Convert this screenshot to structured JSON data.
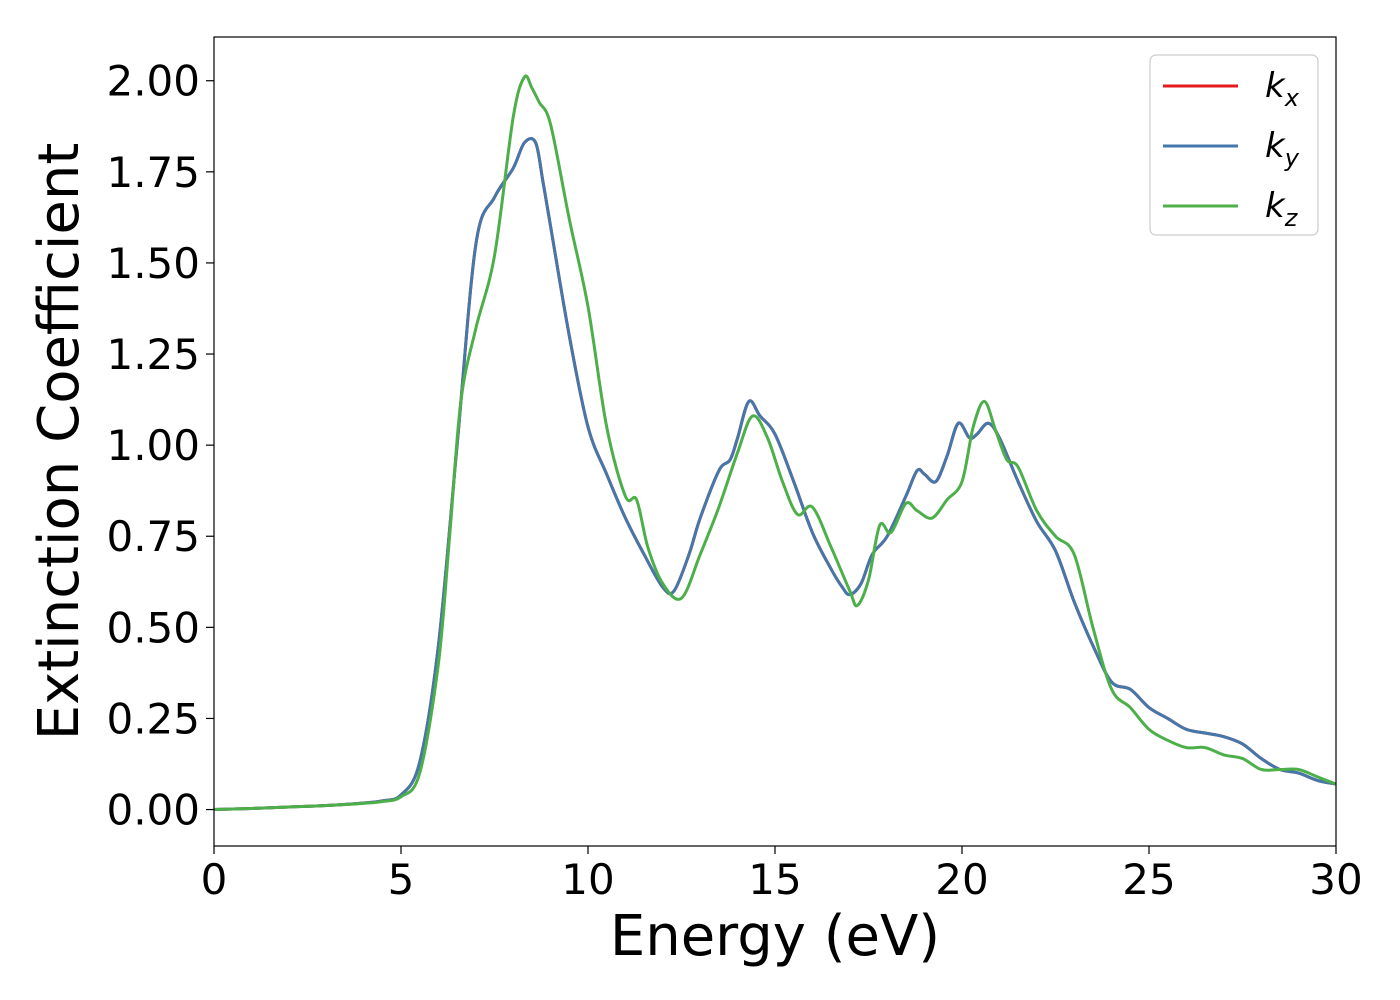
{
  "chart_data": {
    "type": "line",
    "title": "",
    "xlabel": "Energy (eV)",
    "ylabel": "Extinction Coefficient",
    "xlim": [
      0,
      30
    ],
    "ylim": [
      -0.1,
      2.12
    ],
    "xticks": [
      0,
      5,
      10,
      15,
      20,
      25,
      30
    ],
    "xtick_labels": [
      "0",
      "5",
      "10",
      "15",
      "20",
      "25",
      "30"
    ],
    "yticks": [
      0.0,
      0.25,
      0.5,
      0.75,
      1.0,
      1.25,
      1.5,
      1.75,
      2.0
    ],
    "ytick_labels": [
      "0.00",
      "0.25",
      "0.50",
      "0.75",
      "1.00",
      "1.25",
      "1.50",
      "1.75",
      "2.00"
    ],
    "grid": false,
    "legend_position": "top-right",
    "series": [
      {
        "name": "k",
        "subscript": "x",
        "color": "#e41a1c",
        "x": [
          0,
          1,
          2,
          3,
          4,
          4.5,
          5,
          5.5,
          6,
          6.5,
          7,
          7.5,
          8,
          8.3,
          8.6,
          8.8,
          9,
          9.5,
          10,
          10.5,
          11,
          11.5,
          12,
          12.3,
          12.7,
          13,
          13.5,
          13.8,
          14,
          14.3,
          14.6,
          15,
          15.5,
          16,
          16.5,
          16.8,
          17,
          17.3,
          17.6,
          18,
          18.5,
          18.8,
          19,
          19.3,
          19.6,
          19.9,
          20.2,
          20.4,
          20.7,
          21,
          21.5,
          22,
          22.5,
          23,
          23.5,
          24,
          24.5,
          25,
          25.5,
          26,
          26.5,
          27,
          27.5,
          28,
          28.5,
          29,
          29.5,
          30
        ],
        "y": [
          0.0,
          0.003,
          0.007,
          0.011,
          0.018,
          0.024,
          0.04,
          0.13,
          0.45,
          1.0,
          1.55,
          1.68,
          1.76,
          1.83,
          1.83,
          1.72,
          1.6,
          1.3,
          1.05,
          0.92,
          0.8,
          0.7,
          0.61,
          0.6,
          0.7,
          0.8,
          0.93,
          0.96,
          1.02,
          1.12,
          1.08,
          1.03,
          0.9,
          0.76,
          0.66,
          0.61,
          0.59,
          0.62,
          0.7,
          0.75,
          0.86,
          0.93,
          0.92,
          0.9,
          0.97,
          1.06,
          1.02,
          1.03,
          1.06,
          1.02,
          0.9,
          0.79,
          0.71,
          0.57,
          0.45,
          0.35,
          0.33,
          0.28,
          0.25,
          0.22,
          0.21,
          0.2,
          0.18,
          0.14,
          0.11,
          0.1,
          0.08,
          0.07
        ]
      },
      {
        "name": "k",
        "subscript": "y",
        "color": "#4477aa",
        "x": [
          0,
          1,
          2,
          3,
          4,
          4.5,
          5,
          5.5,
          6,
          6.5,
          7,
          7.5,
          8,
          8.3,
          8.6,
          8.8,
          9,
          9.5,
          10,
          10.5,
          11,
          11.5,
          12,
          12.3,
          12.7,
          13,
          13.5,
          13.8,
          14,
          14.3,
          14.6,
          15,
          15.5,
          16,
          16.5,
          16.8,
          17,
          17.3,
          17.6,
          18,
          18.5,
          18.8,
          19,
          19.3,
          19.6,
          19.9,
          20.2,
          20.4,
          20.7,
          21,
          21.5,
          22,
          22.5,
          23,
          23.5,
          24,
          24.5,
          25,
          25.5,
          26,
          26.5,
          27,
          27.5,
          28,
          28.5,
          29,
          29.5,
          30
        ],
        "y": [
          0.0,
          0.003,
          0.007,
          0.011,
          0.018,
          0.024,
          0.04,
          0.13,
          0.45,
          1.0,
          1.55,
          1.68,
          1.76,
          1.83,
          1.83,
          1.72,
          1.6,
          1.3,
          1.05,
          0.92,
          0.8,
          0.7,
          0.61,
          0.6,
          0.7,
          0.8,
          0.93,
          0.96,
          1.02,
          1.12,
          1.08,
          1.03,
          0.9,
          0.76,
          0.66,
          0.61,
          0.59,
          0.62,
          0.7,
          0.75,
          0.86,
          0.93,
          0.92,
          0.9,
          0.97,
          1.06,
          1.02,
          1.03,
          1.06,
          1.02,
          0.9,
          0.79,
          0.71,
          0.57,
          0.45,
          0.35,
          0.33,
          0.28,
          0.25,
          0.22,
          0.21,
          0.2,
          0.18,
          0.14,
          0.11,
          0.1,
          0.08,
          0.07
        ]
      },
      {
        "name": "k",
        "subscript": "z",
        "color": "#4daf4a",
        "x": [
          0,
          1,
          2,
          3,
          4,
          4.5,
          5,
          5.5,
          6,
          6.3,
          6.6,
          7,
          7.5,
          8,
          8.3,
          8.5,
          8.7,
          9,
          9.5,
          10,
          10.5,
          11,
          11.3,
          11.6,
          12,
          12.5,
          13,
          13.5,
          14,
          14.4,
          14.8,
          15.2,
          15.6,
          16,
          16.5,
          17,
          17.2,
          17.5,
          17.8,
          18.1,
          18.5,
          18.8,
          19.2,
          19.6,
          20,
          20.3,
          20.6,
          20.9,
          21.2,
          21.5,
          22,
          22.5,
          23,
          23.5,
          24,
          24.5,
          25,
          25.5,
          26,
          26.5,
          27,
          27.5,
          28,
          28.5,
          29,
          29.5,
          30
        ],
        "y": [
          0.0,
          0.003,
          0.007,
          0.011,
          0.017,
          0.022,
          0.035,
          0.1,
          0.4,
          0.75,
          1.12,
          1.32,
          1.52,
          1.9,
          2.01,
          1.98,
          1.94,
          1.88,
          1.62,
          1.38,
          1.05,
          0.86,
          0.85,
          0.72,
          0.62,
          0.58,
          0.7,
          0.83,
          0.98,
          1.08,
          1.02,
          0.9,
          0.81,
          0.83,
          0.72,
          0.6,
          0.56,
          0.63,
          0.78,
          0.76,
          0.84,
          0.82,
          0.8,
          0.85,
          0.9,
          1.05,
          1.12,
          1.04,
          0.96,
          0.94,
          0.82,
          0.75,
          0.7,
          0.5,
          0.33,
          0.28,
          0.22,
          0.19,
          0.17,
          0.17,
          0.15,
          0.14,
          0.11,
          0.11,
          0.11,
          0.09,
          0.07
        ]
      }
    ]
  }
}
